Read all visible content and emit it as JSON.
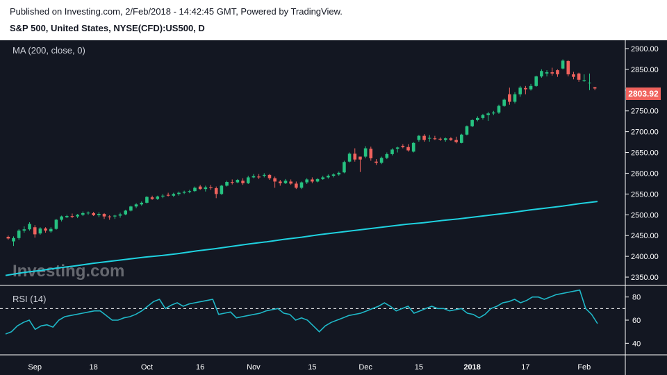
{
  "header": {
    "published": "Published on Investing.com, 2/Feb/2018 - 14:42:45 GMT, Powered by TradingView.",
    "symbol": "S&P 500, United States, NYSE(CFD):US500, D"
  },
  "indicators": {
    "ma_label": "MA (200, close, 0)",
    "rsi_label": "RSI (14)"
  },
  "watermark": "Investing.com",
  "last_price_label": "2803.92",
  "colors": {
    "background": "#131722",
    "up": "#26c281",
    "down": "#f0625d",
    "ma_line": "#1fd2e0",
    "rsi_line": "#1fb8c8",
    "axis_text": "#ffffff"
  },
  "chart_data": [
    {
      "type": "candlestick",
      "title": "S&P 500, United States, NYSE(CFD):US500, D",
      "y_ticks": [
        2350,
        2400,
        2450,
        2500,
        2550,
        2600,
        2650,
        2700,
        2750,
        2800,
        2850,
        2900
      ],
      "ylim": [
        2330,
        2920
      ],
      "x_ticks": [
        "Sep",
        "18",
        "Oct",
        "16",
        "Nov",
        "15",
        "Dec",
        "15",
        "2018",
        "17",
        "Feb"
      ],
      "candles_ohlc": [
        [
          2447,
          2450,
          2440,
          2443
        ],
        [
          2436,
          2448,
          2425,
          2444
        ],
        [
          2444,
          2465,
          2440,
          2462
        ],
        [
          2462,
          2472,
          2457,
          2465
        ],
        [
          2465,
          2482,
          2462,
          2478
        ],
        [
          2470,
          2475,
          2445,
          2453
        ],
        [
          2455,
          2470,
          2452,
          2467
        ],
        [
          2467,
          2470,
          2457,
          2462
        ],
        [
          2460,
          2470,
          2457,
          2466
        ],
        [
          2466,
          2490,
          2464,
          2488
        ],
        [
          2488,
          2498,
          2484,
          2496
        ],
        [
          2494,
          2500,
          2492,
          2497
        ],
        [
          2497,
          2503,
          2492,
          2495
        ],
        [
          2496,
          2502,
          2492,
          2500
        ],
        [
          2500,
          2508,
          2497,
          2504
        ],
        [
          2504,
          2508,
          2500,
          2505
        ],
        [
          2504,
          2507,
          2497,
          2499
        ],
        [
          2499,
          2506,
          2494,
          2502
        ],
        [
          2502,
          2504,
          2490,
          2496
        ],
        [
          2496,
          2499,
          2488,
          2494
        ],
        [
          2496,
          2500,
          2490,
          2498
        ],
        [
          2498,
          2505,
          2493,
          2501
        ],
        [
          2501,
          2512,
          2499,
          2510
        ],
        [
          2510,
          2522,
          2508,
          2520
        ],
        [
          2520,
          2528,
          2516,
          2525
        ],
        [
          2525,
          2532,
          2522,
          2529
        ],
        [
          2529,
          2545,
          2527,
          2543
        ],
        [
          2542,
          2546,
          2536,
          2538
        ],
        [
          2538,
          2546,
          2536,
          2544
        ],
        [
          2544,
          2550,
          2540,
          2546
        ],
        [
          2548,
          2553,
          2544,
          2546
        ],
        [
          2546,
          2553,
          2543,
          2550
        ],
        [
          2550,
          2556,
          2546,
          2553
        ],
        [
          2553,
          2558,
          2550,
          2555
        ],
        [
          2555,
          2560,
          2552,
          2557
        ],
        [
          2557,
          2568,
          2555,
          2565
        ],
        [
          2568,
          2572,
          2560,
          2562
        ],
        [
          2562,
          2570,
          2556,
          2566
        ],
        [
          2566,
          2572,
          2560,
          2564
        ],
        [
          2564,
          2568,
          2540,
          2550
        ],
        [
          2550,
          2572,
          2548,
          2570
        ],
        [
          2570,
          2582,
          2568,
          2579
        ],
        [
          2579,
          2585,
          2573,
          2578
        ],
        [
          2578,
          2586,
          2576,
          2584
        ],
        [
          2582,
          2588,
          2572,
          2576
        ],
        [
          2576,
          2594,
          2574,
          2590
        ],
        [
          2590,
          2598,
          2588,
          2593
        ],
        [
          2592,
          2598,
          2586,
          2590
        ],
        [
          2594,
          2600,
          2590,
          2596
        ],
        [
          2596,
          2598,
          2584,
          2588
        ],
        [
          2588,
          2592,
          2565,
          2580
        ],
        [
          2580,
          2584,
          2570,
          2576
        ],
        [
          2576,
          2586,
          2574,
          2582
        ],
        [
          2580,
          2585,
          2572,
          2575
        ],
        [
          2575,
          2580,
          2562,
          2565
        ],
        [
          2565,
          2580,
          2562,
          2578
        ],
        [
          2578,
          2588,
          2574,
          2585
        ],
        [
          2585,
          2590,
          2576,
          2580
        ],
        [
          2580,
          2588,
          2578,
          2586
        ],
        [
          2586,
          2594,
          2584,
          2590
        ],
        [
          2590,
          2597,
          2587,
          2594
        ],
        [
          2594,
          2600,
          2590,
          2597
        ],
        [
          2597,
          2604,
          2594,
          2601
        ],
        [
          2602,
          2630,
          2600,
          2627
        ],
        [
          2628,
          2650,
          2626,
          2647
        ],
        [
          2647,
          2660,
          2628,
          2633
        ],
        [
          2640,
          2640,
          2603,
          2633
        ],
        [
          2640,
          2665,
          2636,
          2660
        ],
        [
          2659,
          2664,
          2630,
          2636
        ],
        [
          2628,
          2634,
          2620,
          2625
        ],
        [
          2625,
          2640,
          2622,
          2637
        ],
        [
          2637,
          2650,
          2634,
          2646
        ],
        [
          2646,
          2660,
          2643,
          2657
        ],
        [
          2659,
          2664,
          2650,
          2662
        ],
        [
          2666,
          2670,
          2660,
          2663
        ],
        [
          2663,
          2670,
          2652,
          2655
        ],
        [
          2652,
          2675,
          2650,
          2673
        ],
        [
          2680,
          2692,
          2676,
          2690
        ],
        [
          2690,
          2694,
          2676,
          2680
        ],
        [
          2684,
          2692,
          2676,
          2685
        ],
        [
          2684,
          2690,
          2680,
          2682
        ],
        [
          2683,
          2686,
          2678,
          2681
        ],
        [
          2680,
          2686,
          2676,
          2684
        ],
        [
          2684,
          2687,
          2678,
          2680
        ],
        [
          2680,
          2688,
          2672,
          2675
        ],
        [
          2673,
          2695,
          2672,
          2693
        ],
        [
          2693,
          2715,
          2691,
          2713
        ],
        [
          2713,
          2730,
          2711,
          2728
        ],
        [
          2728,
          2737,
          2725,
          2733
        ],
        [
          2733,
          2743,
          2729,
          2740
        ],
        [
          2740,
          2748,
          2726,
          2744
        ],
        [
          2744,
          2750,
          2740,
          2746
        ],
        [
          2746,
          2765,
          2743,
          2762
        ],
        [
          2762,
          2780,
          2760,
          2777
        ],
        [
          2790,
          2806,
          2765,
          2772
        ],
        [
          2772,
          2795,
          2768,
          2790
        ],
        [
          2790,
          2810,
          2784,
          2806
        ],
        [
          2805,
          2810,
          2790,
          2802
        ],
        [
          2802,
          2815,
          2799,
          2810
        ],
        [
          2810,
          2835,
          2808,
          2833
        ],
        [
          2833,
          2850,
          2830,
          2846
        ],
        [
          2840,
          2848,
          2833,
          2843
        ],
        [
          2843,
          2854,
          2835,
          2840
        ],
        [
          2848,
          2850,
          2832,
          2838
        ],
        [
          2852,
          2874,
          2850,
          2871
        ],
        [
          2870,
          2872,
          2833,
          2838
        ],
        [
          2838,
          2844,
          2826,
          2832
        ],
        [
          2840,
          2842,
          2820,
          2825
        ],
        [
          2822,
          2838,
          2820,
          2824
        ],
        [
          2818,
          2840,
          2800,
          2818
        ],
        [
          2807,
          2808,
          2800,
          2803.92
        ]
      ],
      "ma200": [
        2354,
        2361,
        2366,
        2372,
        2377,
        2383,
        2388,
        2393,
        2398,
        2402,
        2407,
        2413,
        2418,
        2424,
        2430,
        2435,
        2441,
        2446,
        2452,
        2457,
        2462,
        2467,
        2472,
        2477,
        2481,
        2486,
        2490,
        2495,
        2500,
        2505,
        2511,
        2516,
        2521,
        2527,
        2532
      ],
      "last_price": 2803.92
    },
    {
      "type": "line",
      "title": "RSI (14)",
      "y_ticks": [
        40,
        60,
        80
      ],
      "ylim": [
        30,
        90
      ],
      "guide_levels": [
        30,
        70
      ],
      "values": [
        48,
        50,
        55,
        58,
        60,
        52,
        55,
        56,
        54,
        60,
        63,
        64,
        65,
        66,
        67,
        68,
        68,
        64,
        60,
        60,
        62,
        63,
        65,
        68,
        72,
        76,
        78,
        70,
        73,
        75,
        72,
        74,
        75,
        76,
        77,
        78,
        65,
        66,
        67,
        62,
        63,
        64,
        65,
        66,
        68,
        69,
        70,
        66,
        65,
        60,
        62,
        60,
        55,
        50,
        55,
        58,
        60,
        62,
        64,
        65,
        66,
        68,
        70,
        72,
        75,
        72,
        68,
        70,
        72,
        66,
        68,
        70,
        72,
        70,
        70,
        68,
        69,
        70,
        66,
        65,
        62,
        65,
        70,
        72,
        75,
        76,
        78,
        75,
        77,
        80,
        80,
        78,
        80,
        82,
        83,
        84,
        85,
        86,
        70,
        65,
        57
      ]
    }
  ]
}
